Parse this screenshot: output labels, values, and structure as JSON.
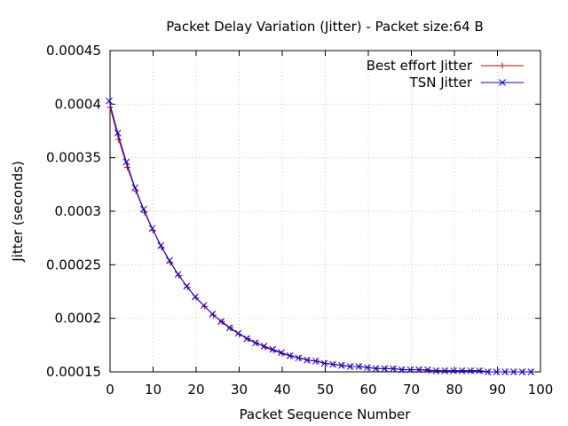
{
  "chart_data": {
    "type": "line",
    "title": "Packet Delay Variation (Jitter) - Packet size:64 B",
    "xlabel": "Packet Sequence Number",
    "ylabel": "Jitter (seconds)",
    "xlim": [
      0,
      100
    ],
    "ylim": [
      0.00015,
      0.00045
    ],
    "xticks": [
      0,
      10,
      20,
      30,
      40,
      50,
      60,
      70,
      80,
      90,
      100
    ],
    "yticks": [
      0.00015,
      0.0002,
      0.00025,
      0.0003,
      0.00035,
      0.0004,
      0.00045
    ],
    "xtick_labels": [
      "0",
      "10",
      "20",
      "30",
      "40",
      "50",
      "60",
      "70",
      "80",
      "90",
      "100"
    ],
    "ytick_labels": [
      "0.00015",
      "0.0002",
      "0.00025",
      "0.0003",
      "0.00035",
      "0.0004",
      "0.00045"
    ],
    "grid": true,
    "legend_position": "top-right",
    "series": [
      {
        "name": "Best effort Jitter",
        "color": "#cc0000",
        "marker": "plus",
        "x": [
          0,
          2,
          4,
          6,
          8,
          10,
          12,
          14,
          16,
          18,
          20,
          22,
          24,
          26,
          28,
          30,
          32,
          34,
          36,
          38,
          40,
          42,
          44,
          46,
          48,
          50,
          52,
          54,
          56,
          58,
          60,
          62,
          64,
          66,
          68,
          70,
          72,
          74,
          76,
          78,
          80,
          82,
          84,
          86,
          88,
          90,
          92,
          94,
          96,
          98
        ],
        "y": [
          0.000397,
          0.000367,
          0.000341,
          0.000319,
          0.000299,
          0.000282,
          0.000266,
          0.000252,
          0.00024,
          0.000229,
          0.000219,
          0.000211,
          0.000203,
          0.000197,
          0.000191,
          0.000185,
          0.000181,
          0.000177,
          0.000173,
          0.00017,
          0.000167,
          0.000165,
          0.000163,
          0.000161,
          0.00016,
          0.000158,
          0.000157,
          0.000156,
          0.000155,
          0.000155,
          0.000154,
          0.000153,
          0.000153,
          0.000153,
          0.000152,
          0.000152,
          0.000152,
          0.000151,
          0.000151,
          0.000151,
          0.000151,
          0.000151,
          0.000151,
          0.000151,
          0.00015,
          0.00015,
          0.00015,
          0.00015,
          0.00015,
          0.00015
        ]
      },
      {
        "name": "TSN Jitter",
        "color": "#0000ee",
        "marker": "cross",
        "x": [
          -0.2,
          1.8,
          3.8,
          5.8,
          7.8,
          9.8,
          11.8,
          13.8,
          15.8,
          17.8,
          19.8,
          21.8,
          23.8,
          25.8,
          27.8,
          29.8,
          31.8,
          33.8,
          35.8,
          37.8,
          39.8,
          41.8,
          43.8,
          45.8,
          47.8,
          49.8,
          51.8,
          53.8,
          55.8,
          57.8,
          59.8,
          61.8,
          63.8,
          65.8,
          67.8,
          69.8,
          71.8,
          73.8,
          75.8,
          77.8,
          79.8,
          81.8,
          83.8,
          85.8,
          87.8,
          89.8,
          91.8,
          93.8,
          95.8,
          97.8
        ],
        "y": [
          0.000403,
          0.000373,
          0.000346,
          0.000322,
          0.000302,
          0.000284,
          0.000268,
          0.000254,
          0.000241,
          0.00023,
          0.00022,
          0.000212,
          0.000204,
          0.000197,
          0.000191,
          0.000186,
          0.000181,
          0.000177,
          0.000174,
          0.000171,
          0.000168,
          0.000165,
          0.000163,
          0.000161,
          0.00016,
          0.000158,
          0.000157,
          0.000156,
          0.000155,
          0.000155,
          0.000154,
          0.000153,
          0.000153,
          0.000153,
          0.000152,
          0.000152,
          0.000152,
          0.000152,
          0.000151,
          0.000151,
          0.000151,
          0.000151,
          0.000151,
          0.000151,
          0.00015,
          0.00015,
          0.00015,
          0.00015,
          0.00015,
          0.00015
        ]
      }
    ]
  }
}
